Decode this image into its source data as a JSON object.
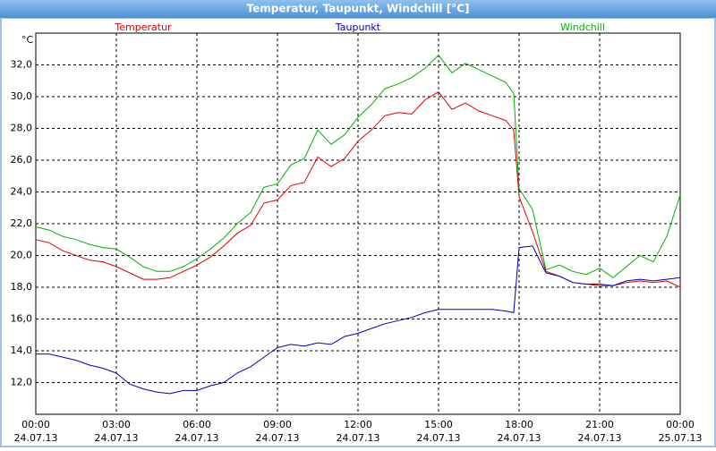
{
  "chart_data": {
    "type": "line",
    "title": "Temperatur, Taupunkt, Windchill [°C]",
    "y_unit": "°C",
    "x": [
      0,
      0.5,
      1,
      1.5,
      2,
      2.5,
      3,
      3.5,
      4,
      4.5,
      5,
      5.5,
      6,
      6.5,
      7,
      7.5,
      8,
      8.5,
      9,
      9.5,
      10,
      10.5,
      11,
      11.5,
      12,
      12.5,
      13,
      13.5,
      14,
      14.5,
      15,
      15.5,
      16,
      16.5,
      17,
      17.5,
      17.8,
      18,
      18.5,
      19,
      19.5,
      20,
      20.5,
      21,
      21.5,
      22,
      22.5,
      23,
      23.5,
      24
    ],
    "series": [
      {
        "name": "Windchill",
        "color": "#00b000",
        "values": [
          21.8,
          21.6,
          21.2,
          21.0,
          20.7,
          20.5,
          20.4,
          19.9,
          19.3,
          19.0,
          19.0,
          19.3,
          19.8,
          20.4,
          21.1,
          22.0,
          22.7,
          24.3,
          24.5,
          25.7,
          26.1,
          27.9,
          27.0,
          27.6,
          28.7,
          29.5,
          30.5,
          30.8,
          31.2,
          31.8,
          32.6,
          31.5,
          32.1,
          31.7,
          31.3,
          30.9,
          30.2,
          24.2,
          22.9,
          19.1,
          19.4,
          19.0,
          18.8,
          19.2,
          18.6,
          19.3,
          20.0,
          19.6,
          21.2,
          23.8
        ]
      },
      {
        "name": "Temperatur",
        "color": "#e00000",
        "values": [
          21.0,
          20.8,
          20.3,
          20.0,
          19.7,
          19.6,
          19.3,
          18.9,
          18.5,
          18.5,
          18.6,
          19.0,
          19.4,
          19.9,
          20.6,
          21.4,
          21.9,
          23.3,
          23.5,
          24.4,
          24.6,
          26.2,
          25.6,
          26.1,
          27.2,
          27.9,
          28.8,
          29.0,
          28.9,
          29.8,
          30.3,
          29.2,
          29.6,
          29.1,
          28.8,
          28.5,
          27.9,
          23.7,
          21.5,
          19.0,
          18.7,
          18.3,
          18.2,
          18.1,
          18.1,
          18.3,
          18.4,
          18.3,
          18.4,
          18.0
        ]
      },
      {
        "name": "Taupunkt",
        "color": "#0000c0",
        "values": [
          13.8,
          13.8,
          13.6,
          13.4,
          13.1,
          12.9,
          12.6,
          11.9,
          11.6,
          11.4,
          11.3,
          11.5,
          11.5,
          11.8,
          12.0,
          12.6,
          13.0,
          13.6,
          14.2,
          14.4,
          14.3,
          14.5,
          14.4,
          14.9,
          15.1,
          15.4,
          15.7,
          15.9,
          16.1,
          16.4,
          16.6,
          16.6,
          16.6,
          16.6,
          16.6,
          16.5,
          16.4,
          20.5,
          20.6,
          18.9,
          18.7,
          18.3,
          18.2,
          18.2,
          18.1,
          18.4,
          18.5,
          18.4,
          18.5,
          18.6
        ]
      }
    ],
    "legend_order": [
      1,
      2,
      0
    ],
    "xlim": [
      0,
      24
    ],
    "xticks": [
      {
        "value": 0,
        "label": "00:00"
      },
      {
        "value": 3,
        "label": "03:00"
      },
      {
        "value": 6,
        "label": "06:00"
      },
      {
        "value": 9,
        "label": "09:00"
      },
      {
        "value": 12,
        "label": "12:00"
      },
      {
        "value": 15,
        "label": "15:00"
      },
      {
        "value": 18,
        "label": "18:00"
      },
      {
        "value": 21,
        "label": "21:00"
      },
      {
        "value": 24,
        "label": "00:00"
      }
    ],
    "xtick_dates": [
      "24.07.13",
      "24.07.13",
      "24.07.13",
      "24.07.13",
      "24.07.13",
      "24.07.13",
      "24.07.13",
      "24.07.13",
      "25.07.13"
    ],
    "ylim": [
      10,
      34
    ],
    "yticks": [
      {
        "value": 12,
        "label": "12,0"
      },
      {
        "value": 14,
        "label": "14,0"
      },
      {
        "value": 16,
        "label": "16,0"
      },
      {
        "value": 18,
        "label": "18,0"
      },
      {
        "value": 20,
        "label": "20,0"
      },
      {
        "value": 22,
        "label": "22,0"
      },
      {
        "value": 24,
        "label": "24,0"
      },
      {
        "value": 26,
        "label": "26,0"
      },
      {
        "value": 28,
        "label": "28,0"
      },
      {
        "value": 30,
        "label": "30,0"
      },
      {
        "value": 32,
        "label": "32,0"
      }
    ],
    "grid": true
  }
}
